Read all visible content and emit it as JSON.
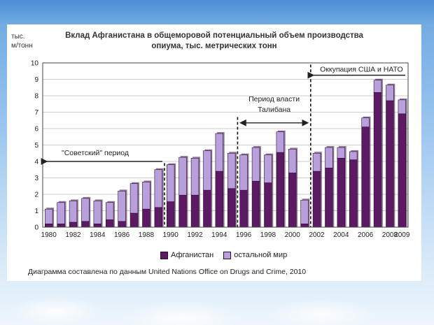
{
  "chart_data": {
    "type": "bar",
    "stacked": true,
    "title": "Вклад Афганистана в общеморовой потенциальный объем производства опиума, тыс. метрических тонн",
    "title_line1": "Вклад Афганистана в общеморовой потенциальный объем производства",
    "title_line2": "опиума, тыс. метрических тонн",
    "y_unit_line1": "тыс.",
    "y_unit_line2": "м/тонн",
    "ylim": [
      0,
      10
    ],
    "y_ticks": [
      "0",
      "1",
      "2",
      "3",
      "4",
      "5",
      "6",
      "7",
      "8",
      "9",
      "10"
    ],
    "x": [
      1980,
      1981,
      1982,
      1983,
      1984,
      1985,
      1986,
      1987,
      1988,
      1989,
      1990,
      1991,
      1992,
      1993,
      1994,
      1995,
      1996,
      1997,
      1998,
      1999,
      2000,
      2001,
      2002,
      2003,
      2004,
      2005,
      2006,
      2007,
      2008,
      2009
    ],
    "x_tick_labels": [
      "1980",
      "1982",
      "1984",
      "1986",
      "1988",
      "1990",
      "1992",
      "1994",
      "1996",
      "1998",
      "2000",
      "2002",
      "2004",
      "2006",
      "2008",
      "2009"
    ],
    "series": [
      {
        "name": "Афганистан",
        "color": "#5b1a63",
        "values": [
          0.2,
          0.2,
          0.3,
          0.35,
          0.2,
          0.45,
          0.35,
          0.85,
          1.1,
          1.2,
          1.55,
          1.95,
          1.95,
          2.25,
          3.4,
          2.35,
          2.25,
          2.8,
          2.7,
          4.55,
          3.3,
          0.2,
          3.4,
          3.6,
          4.2,
          4.1,
          6.1,
          8.2,
          7.7,
          6.9
        ]
      },
      {
        "name": "остальной мир",
        "color": "#b7a0dc",
        "values": [
          0.9,
          1.3,
          1.3,
          1.4,
          1.4,
          1.05,
          1.85,
          1.8,
          1.65,
          2.3,
          2.25,
          2.3,
          2.25,
          2.4,
          2.3,
          2.15,
          2.15,
          2.05,
          1.7,
          1.25,
          1.45,
          1.45,
          1.1,
          1.25,
          0.65,
          0.5,
          0.55,
          0.75,
          0.95,
          0.85
        ]
      }
    ],
    "annotations": {
      "soviet": "\"Советский\" период",
      "taliban_line1": "Период власти",
      "taliban_line2": "Талибана",
      "nato": "Оккупация США и НАТО"
    },
    "grid": true,
    "legend_position": "bottom-center",
    "source": "Диаграмма составлена по данным United Nations Office on Drugs and Crime, 2010"
  }
}
